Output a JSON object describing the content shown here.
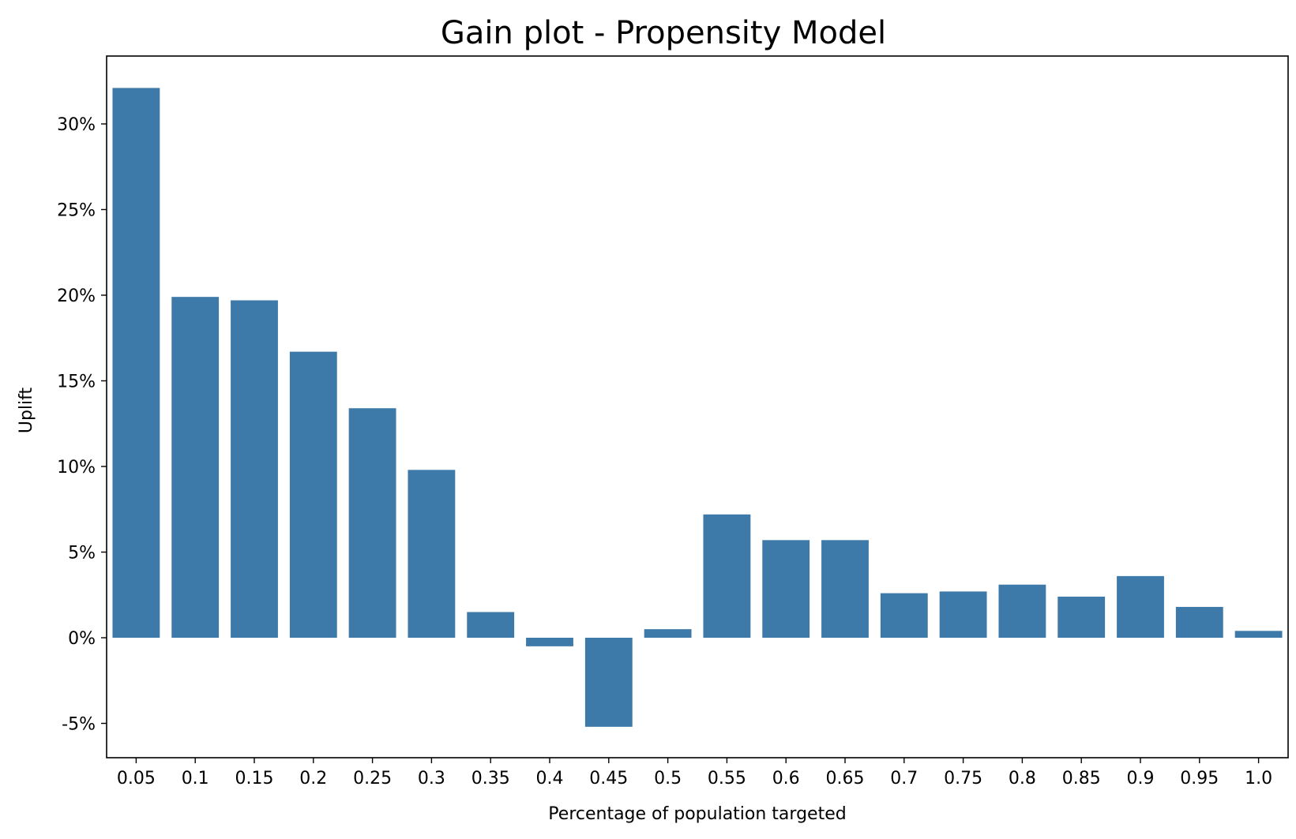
{
  "chart_data": {
    "type": "bar",
    "title": "Gain plot - Propensity Model",
    "xlabel": "Percentage of population targeted",
    "ylabel": "Uplift",
    "categories": [
      "0.05",
      "0.1",
      "0.15",
      "0.2",
      "0.25",
      "0.3",
      "0.35",
      "0.4",
      "0.45",
      "0.5",
      "0.55",
      "0.6",
      "0.65",
      "0.7",
      "0.75",
      "0.8",
      "0.85",
      "0.9",
      "0.95",
      "1.0"
    ],
    "values": [
      0.321,
      0.199,
      0.197,
      0.167,
      0.134,
      0.098,
      0.015,
      -0.005,
      -0.052,
      0.005,
      0.072,
      0.057,
      0.057,
      0.026,
      0.027,
      0.031,
      0.024,
      0.036,
      0.018,
      0.004
    ],
    "ylim": [
      -0.07,
      0.34
    ],
    "yticks": [
      -0.05,
      0,
      0.05,
      0.1,
      0.15,
      0.2,
      0.25,
      0.3
    ],
    "ytick_labels": [
      "-5%",
      "0%",
      "5%",
      "10%",
      "15%",
      "20%",
      "25%",
      "30%"
    ],
    "bar_color": "#3d7aaa",
    "grid": false,
    "legend": false
  }
}
